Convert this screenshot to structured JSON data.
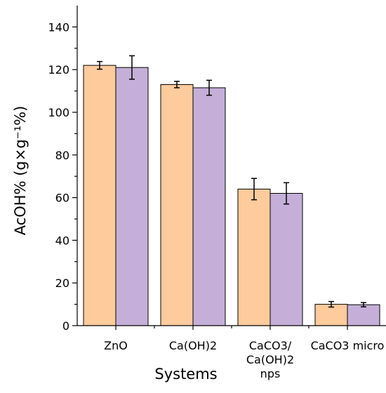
{
  "chart_data": {
    "type": "bar",
    "title": "",
    "xlabel": "Systems",
    "ylabel": "AcOH% (g×g⁻¹%)",
    "ylim": [
      0,
      150
    ],
    "yticks": [
      0,
      20,
      40,
      60,
      80,
      100,
      120,
      140
    ],
    "categories": [
      [
        "ZnO"
      ],
      [
        "Ca(OH)2"
      ],
      [
        "CaCO3/",
        "Ca(OH)2",
        "nps"
      ],
      [
        "CaCO3 micro"
      ]
    ],
    "series": [
      {
        "color": "#FDCB9C",
        "values": [
          122,
          113,
          64,
          10
        ],
        "errors": [
          1.8,
          1.5,
          5,
          1.3
        ]
      },
      {
        "color": "#C5AFD8",
        "values": [
          121,
          111.5,
          62,
          9.8
        ],
        "errors": [
          5.5,
          3.5,
          5,
          1
        ]
      }
    ],
    "legend": "none",
    "grid": false
  }
}
